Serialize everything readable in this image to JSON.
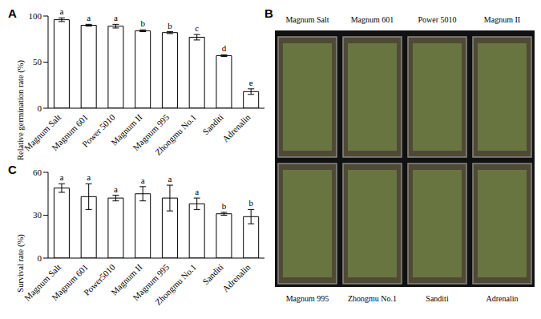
{
  "chart_data": [
    {
      "panel": "A",
      "type": "bar",
      "y_label": "Relative germination rate (%)",
      "categories": [
        "Magnum Salt",
        "Magnum 601",
        "Power 5010",
        "Magnum II",
        "Magnum 995",
        "Zhongmu No.1",
        "Sanditi",
        "Adrenalin"
      ],
      "values": [
        96,
        90,
        89,
        84,
        82,
        77,
        57,
        18
      ],
      "errors": [
        2,
        1,
        2,
        1,
        1,
        3,
        1,
        3
      ],
      "letters": [
        "a",
        "a",
        "a",
        "b",
        "b",
        "c",
        "d",
        "e"
      ],
      "color": "#ffffff",
      "ylim": [
        0,
        100
      ],
      "yticks": [
        0,
        50,
        100
      ],
      "grid": false
    },
    {
      "panel": "C",
      "type": "bar",
      "y_label": "Survival rate (%)",
      "categories": [
        "Magnum Salt",
        "Magnum 601",
        "Power5010",
        "Magnum II",
        "Magnum 995",
        "Zhongmu No.1",
        "Sanditi",
        "Adrenalin"
      ],
      "values": [
        49,
        43,
        42,
        45,
        42,
        38,
        31,
        29
      ],
      "errors": [
        3,
        9,
        2,
        5,
        9,
        4,
        1,
        5
      ],
      "letters": [
        "a",
        "a",
        "a",
        "a",
        "a",
        "a",
        "b",
        "b"
      ],
      "color": "#ffffff",
      "ylim": [
        0,
        60
      ],
      "yticks": [
        0,
        30,
        60
      ],
      "grid": false
    }
  ],
  "photo": {
    "panel": "B",
    "labels_top": [
      "Magnum Salt",
      "Magnum 601",
      "Power 5010",
      "Magnum II"
    ],
    "labels_bottom": [
      "Magnum 995",
      "Zhongmu No.1",
      "Sanditi",
      "Adrenalin"
    ]
  }
}
